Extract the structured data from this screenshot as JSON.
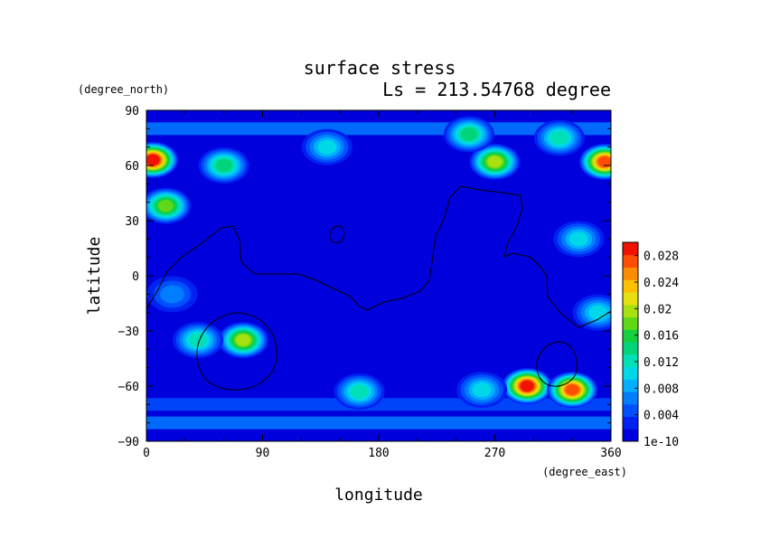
{
  "chart_data": {
    "type": "heatmap",
    "title": "surface stress",
    "subtitle": "Ls = 213.54768 degree",
    "xlabel": "longitude",
    "ylabel": "latitude",
    "x_units": "(degree_east)",
    "y_units": "(degree_north)",
    "xlim": [
      0,
      360
    ],
    "ylim": [
      -90,
      90
    ],
    "x_ticks": [
      "0",
      "90",
      "180",
      "270",
      "360"
    ],
    "y_ticks": [
      "90",
      "60",
      "30",
      "0",
      "−30",
      "−60",
      "−90"
    ],
    "colorbar": {
      "labels": [
        "1e-10",
        "0.004",
        "0.008",
        "0.012",
        "0.016",
        "0.02",
        "0.024",
        "0.028"
      ],
      "range": [
        0,
        0.03
      ],
      "colors": [
        "#0000dc",
        "#0022f0",
        "#0050ff",
        "#007eff",
        "#00b0ff",
        "#00d8e8",
        "#00e0b4",
        "#00d47a",
        "#14d03c",
        "#60d818",
        "#a8e010",
        "#e6e010",
        "#ffc000",
        "#ff8c00",
        "#ff4e00",
        "#f01400"
      ]
    },
    "features": [
      {
        "lon": 5,
        "lat": 63,
        "value": 0.028
      },
      {
        "lon": 355,
        "lat": 62,
        "value": 0.026
      },
      {
        "lon": 15,
        "lat": 38,
        "value": 0.016
      },
      {
        "lon": 60,
        "lat": 60,
        "value": 0.014
      },
      {
        "lon": 140,
        "lat": 70,
        "value": 0.01
      },
      {
        "lon": 270,
        "lat": 62,
        "value": 0.018
      },
      {
        "lon": 250,
        "lat": 77,
        "value": 0.014
      },
      {
        "lon": 320,
        "lat": 75,
        "value": 0.012
      },
      {
        "lon": 75,
        "lat": -35,
        "value": 0.018
      },
      {
        "lon": 40,
        "lat": -35,
        "value": 0.012
      },
      {
        "lon": 165,
        "lat": -63,
        "value": 0.012
      },
      {
        "lon": 295,
        "lat": -60,
        "value": 0.028
      },
      {
        "lon": 330,
        "lat": -62,
        "value": 0.026
      },
      {
        "lon": 260,
        "lat": -62,
        "value": 0.01
      },
      {
        "lon": 335,
        "lat": 20,
        "value": 0.01
      },
      {
        "lon": 20,
        "lat": -10,
        "value": 0.006
      },
      {
        "lon": 350,
        "lat": -20,
        "value": 0.01
      }
    ],
    "bands": [
      {
        "lat": 80,
        "value": 0.007
      },
      {
        "lat": -80,
        "value": 0.007
      },
      {
        "lat": -70,
        "value": 0.005
      }
    ]
  }
}
